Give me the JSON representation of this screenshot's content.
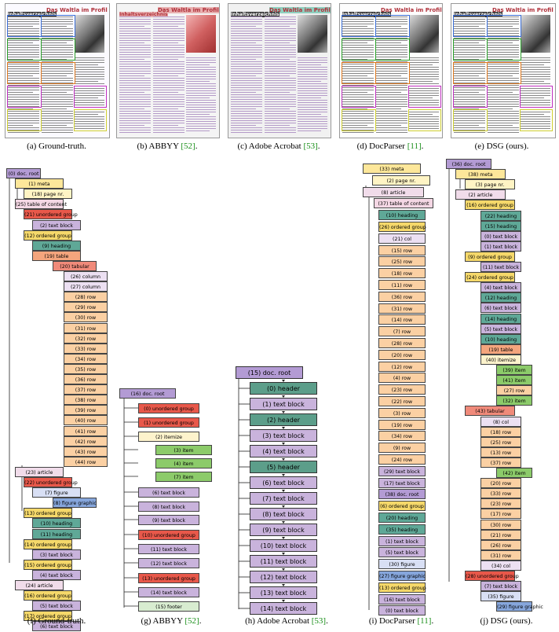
{
  "captions": {
    "a": {
      "label": "(a) Ground-truth.",
      "ref": ""
    },
    "b": {
      "label": "(b) ABBYY ",
      "ref": "[52]",
      "tail": "."
    },
    "c": {
      "label": "(c) Adobe Acrobat ",
      "ref": "[53]",
      "tail": "."
    },
    "d": {
      "label": "(d) DocParser ",
      "ref": "[11]",
      "tail": "."
    },
    "e": {
      "label": "(e) DSG (ours).",
      "ref": ""
    },
    "f": {
      "label": "(f) Ground-truth.",
      "ref": ""
    },
    "g": {
      "label": "(g) ABBYY ",
      "ref": "[52]",
      "tail": "."
    },
    "h": {
      "label": "(h) Adobe Acrobat ",
      "ref": "[53]",
      "tail": "."
    },
    "i": {
      "label": "(i) DocParser ",
      "ref": "[11]",
      "tail": "."
    },
    "j": {
      "label": "(j) DSG (ours).",
      "ref": ""
    }
  },
  "page_texts": {
    "toc": "Inhaltsverzeichnis",
    "headline": "Das Waltla im Profil"
  },
  "colors": {
    "root": "#b39bd4",
    "meta": "#fde79a",
    "pagenr": "#fff4c4",
    "toc": "#f4d7e4",
    "unordered": "#e8584a",
    "textblock": "#c9b3dc",
    "ordered": "#f5d86a",
    "heading": "#5fa897",
    "table": "#f4a57d",
    "tabular": "#f08a7a",
    "column": "#ece0f2",
    "row": "#fbd0a3",
    "article": "#f1dcea",
    "figure": "#d8dff4",
    "figgraphic": "#86a6dc",
    "itemize": "#fdf3cc",
    "item": "#8ccb6a",
    "footer": "#d8ecd0",
    "header": "#5c9e8a",
    "col": "#ece0f2"
  },
  "tree_f": [
    {
      "t": "(0) doc. root",
      "c": "root"
    },
    {
      "t": "(1) meta",
      "c": "meta"
    },
    {
      "t": "(18) page nr.",
      "c": "pagenr"
    },
    {
      "t": "(25) table of content",
      "c": "toc"
    },
    {
      "t": "(21) unordered group",
      "c": "unordered"
    },
    {
      "t": "(2) text block",
      "c": "textblock"
    },
    {
      "t": "(12) ordered group",
      "c": "ordered"
    },
    {
      "t": "(9) heading",
      "c": "heading"
    },
    {
      "t": "(19) table",
      "c": "table"
    },
    {
      "t": "(20) tabular",
      "c": "tabular"
    },
    {
      "t": "(26) column",
      "c": "column"
    },
    {
      "t": "(27) column",
      "c": "column"
    },
    {
      "t": "(28) row",
      "c": "row"
    },
    {
      "t": "(29) row",
      "c": "row"
    },
    {
      "t": "(30) row",
      "c": "row"
    },
    {
      "t": "(31) row",
      "c": "row"
    },
    {
      "t": "(32) row",
      "c": "row"
    },
    {
      "t": "(33) row",
      "c": "row"
    },
    {
      "t": "(34) row",
      "c": "row"
    },
    {
      "t": "(35) row",
      "c": "row"
    },
    {
      "t": "(36) row",
      "c": "row"
    },
    {
      "t": "(37) row",
      "c": "row"
    },
    {
      "t": "(38) row",
      "c": "row"
    },
    {
      "t": "(39) row",
      "c": "row"
    },
    {
      "t": "(40) row",
      "c": "row"
    },
    {
      "t": "(41) row",
      "c": "row"
    },
    {
      "t": "(42) row",
      "c": "row"
    },
    {
      "t": "(43) row",
      "c": "row"
    },
    {
      "t": "(44) row",
      "c": "row"
    },
    {
      "t": "(23) article",
      "c": "article"
    },
    {
      "t": "(22) unordered group",
      "c": "unordered"
    },
    {
      "t": "(7) figure",
      "c": "figure"
    },
    {
      "t": "(8) figure graphic",
      "c": "figgraphic"
    },
    {
      "t": "(13) ordered group",
      "c": "ordered"
    },
    {
      "t": "(10) heading",
      "c": "heading"
    },
    {
      "t": "(11) heading",
      "c": "heading"
    },
    {
      "t": "(14) ordered group",
      "c": "ordered"
    },
    {
      "t": "(3) text block",
      "c": "textblock"
    },
    {
      "t": "(15) ordered group",
      "c": "ordered"
    },
    {
      "t": "(4) text block",
      "c": "textblock"
    },
    {
      "t": "(24) article",
      "c": "article"
    },
    {
      "t": "(16) ordered group",
      "c": "ordered"
    },
    {
      "t": "(5) text block",
      "c": "textblock"
    },
    {
      "t": "(17) ordered group",
      "c": "ordered"
    },
    {
      "t": "(6) text block",
      "c": "textblock"
    }
  ],
  "tree_g": [
    {
      "t": "(16) doc. root",
      "c": "root"
    },
    {
      "t": "(0) unordered group",
      "c": "unordered"
    },
    {
      "t": "(1) unordered group",
      "c": "unordered"
    },
    {
      "t": "(2) itemize",
      "c": "itemize"
    },
    {
      "t": "(3) item",
      "c": "item"
    },
    {
      "t": "(4) item",
      "c": "item"
    },
    {
      "t": "(7) item",
      "c": "item"
    },
    {
      "t": "(6) text block",
      "c": "textblock"
    },
    {
      "t": "(8) text block",
      "c": "textblock"
    },
    {
      "t": "(9) text block",
      "c": "textblock"
    },
    {
      "t": "(10) unordered group",
      "c": "unordered"
    },
    {
      "t": "(11) text block",
      "c": "textblock"
    },
    {
      "t": "(12) text block",
      "c": "textblock"
    },
    {
      "t": "(13) unordered group",
      "c": "unordered"
    },
    {
      "t": "(14) text block",
      "c": "textblock"
    },
    {
      "t": "(15) footer",
      "c": "footer"
    }
  ],
  "tree_h": [
    {
      "t": "(15) doc. root",
      "c": "root"
    },
    {
      "t": "(0) header",
      "c": "header"
    },
    {
      "t": "(1) text block",
      "c": "textblock"
    },
    {
      "t": "(2) header",
      "c": "header"
    },
    {
      "t": "(3) text block",
      "c": "textblock"
    },
    {
      "t": "(4) text block",
      "c": "textblock"
    },
    {
      "t": "(5) header",
      "c": "header"
    },
    {
      "t": "(6) text block",
      "c": "textblock"
    },
    {
      "t": "(7) text block",
      "c": "textblock"
    },
    {
      "t": "(8) text block",
      "c": "textblock"
    },
    {
      "t": "(9) text block",
      "c": "textblock"
    },
    {
      "t": "(10) text block",
      "c": "textblock"
    },
    {
      "t": "(11) text block",
      "c": "textblock"
    },
    {
      "t": "(12) text block",
      "c": "textblock"
    },
    {
      "t": "(13) text block",
      "c": "textblock"
    },
    {
      "t": "(14) text block",
      "c": "textblock"
    }
  ],
  "tree_i": [
    {
      "t": "(33) meta",
      "c": "meta"
    },
    {
      "t": "(2) page nr.",
      "c": "pagenr"
    },
    {
      "t": "(8) article",
      "c": "article"
    },
    {
      "t": "(37) table of content",
      "c": "toc"
    },
    {
      "t": "(10) heading",
      "c": "heading"
    },
    {
      "t": "(26) ordered group",
      "c": "ordered"
    },
    {
      "t": "(21) col",
      "c": "col"
    },
    {
      "t": "(15) row",
      "c": "row"
    },
    {
      "t": "(25) row",
      "c": "row"
    },
    {
      "t": "(18) row",
      "c": "row"
    },
    {
      "t": "(11) row",
      "c": "row"
    },
    {
      "t": "(36) row",
      "c": "row"
    },
    {
      "t": "(31) row",
      "c": "row"
    },
    {
      "t": "(14) row",
      "c": "row"
    },
    {
      "t": "(7) row",
      "c": "row"
    },
    {
      "t": "(28) row",
      "c": "row"
    },
    {
      "t": "(20) row",
      "c": "row"
    },
    {
      "t": "(12) row",
      "c": "row"
    },
    {
      "t": "(4) row",
      "c": "row"
    },
    {
      "t": "(23) row",
      "c": "row"
    },
    {
      "t": "(22) row",
      "c": "row"
    },
    {
      "t": "(3) row",
      "c": "row"
    },
    {
      "t": "(19) row",
      "c": "row"
    },
    {
      "t": "(34) row",
      "c": "row"
    },
    {
      "t": "(9) row",
      "c": "row"
    },
    {
      "t": "(24) row",
      "c": "row"
    },
    {
      "t": "(29) text block",
      "c": "textblock"
    },
    {
      "t": "(17) text block",
      "c": "textblock"
    },
    {
      "t": "(38) doc. root",
      "c": "root"
    },
    {
      "t": "(6) ordered group",
      "c": "ordered"
    },
    {
      "t": "(20) heading",
      "c": "heading"
    },
    {
      "t": "(35) heading",
      "c": "heading"
    },
    {
      "t": "(1) text block",
      "c": "textblock"
    },
    {
      "t": "(5) text block",
      "c": "textblock"
    },
    {
      "t": "(30) figure",
      "c": "figure"
    },
    {
      "t": "(27) figure graphic",
      "c": "figgraphic"
    },
    {
      "t": "(13) ordered group",
      "c": "ordered"
    },
    {
      "t": "(16) text block",
      "c": "textblock"
    },
    {
      "t": "(0) text block",
      "c": "textblock"
    }
  ],
  "tree_j": [
    {
      "t": "(36) doc. root",
      "c": "root"
    },
    {
      "t": "(38) meta",
      "c": "meta"
    },
    {
      "t": "(3) page nr.",
      "c": "pagenr"
    },
    {
      "t": "(2) article",
      "c": "article"
    },
    {
      "t": "(16) ordered group",
      "c": "ordered"
    },
    {
      "t": "(22) heading",
      "c": "heading"
    },
    {
      "t": "(15) heading",
      "c": "heading"
    },
    {
      "t": "(0) text block",
      "c": "textblock"
    },
    {
      "t": "(1) text block",
      "c": "textblock"
    },
    {
      "t": "(9) ordered group",
      "c": "ordered"
    },
    {
      "t": "(11) text block",
      "c": "textblock"
    },
    {
      "t": "(24) ordered group",
      "c": "ordered"
    },
    {
      "t": "(4) text block",
      "c": "textblock"
    },
    {
      "t": "(12) heading",
      "c": "heading"
    },
    {
      "t": "(6) text block",
      "c": "textblock"
    },
    {
      "t": "(14) heading",
      "c": "heading"
    },
    {
      "t": "(5) text block",
      "c": "textblock"
    },
    {
      "t": "(10) heading",
      "c": "heading"
    },
    {
      "t": "(19) table",
      "c": "table"
    },
    {
      "t": "(40) itemize",
      "c": "itemize"
    },
    {
      "t": "(39) item",
      "c": "item"
    },
    {
      "t": "(41) item",
      "c": "item"
    },
    {
      "t": "(27) row",
      "c": "row"
    },
    {
      "t": "(32) item",
      "c": "item"
    },
    {
      "t": "(43) tabular",
      "c": "tabular"
    },
    {
      "t": "(8) col",
      "c": "col"
    },
    {
      "t": "(18) row",
      "c": "row"
    },
    {
      "t": "(25) row",
      "c": "row"
    },
    {
      "t": "(13) row",
      "c": "row"
    },
    {
      "t": "(37) row",
      "c": "row"
    },
    {
      "t": "(42) item",
      "c": "item"
    },
    {
      "t": "(20) row",
      "c": "row"
    },
    {
      "t": "(33) row",
      "c": "row"
    },
    {
      "t": "(23) row",
      "c": "row"
    },
    {
      "t": "(17) row",
      "c": "row"
    },
    {
      "t": "(30) row",
      "c": "row"
    },
    {
      "t": "(21) row",
      "c": "row"
    },
    {
      "t": "(26) row",
      "c": "row"
    },
    {
      "t": "(31) row",
      "c": "row"
    },
    {
      "t": "(34) col",
      "c": "col"
    },
    {
      "t": "(28) unordered group",
      "c": "unordered"
    },
    {
      "t": "(7) text block",
      "c": "textblock"
    },
    {
      "t": "(35) figure",
      "c": "figure"
    },
    {
      "t": "(29) figure graphic",
      "c": "figgraphic"
    }
  ]
}
